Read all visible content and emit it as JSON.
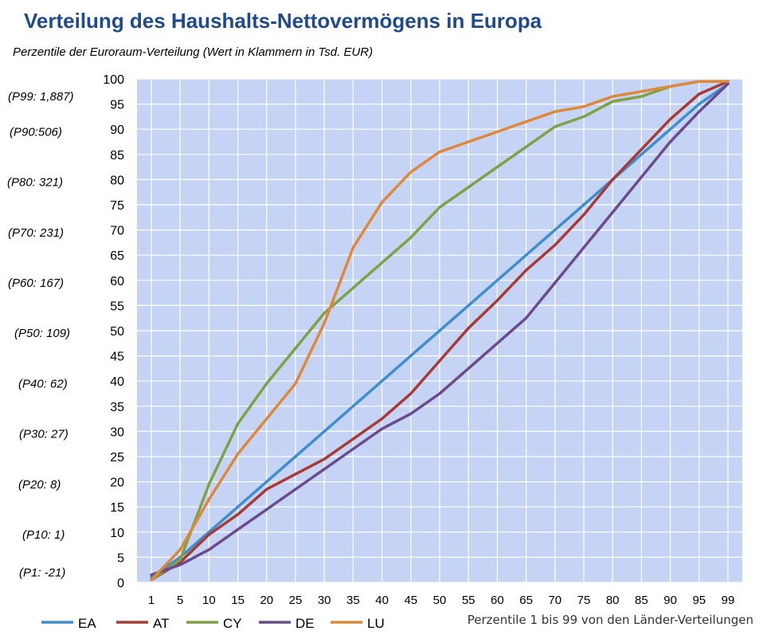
{
  "chart_data": {
    "type": "line",
    "title": "Verteilung des Haushalts-Nettovermögens in Europa",
    "subtitle": "Perzentile der Euroraum-Verteilung (Wert in Klammern in Tsd. EUR)",
    "xlabel": "Perzentile 1 bis 99 von den Länder-Verteilungen",
    "ylabel": "",
    "x": [
      1,
      5,
      10,
      15,
      20,
      25,
      30,
      35,
      40,
      45,
      50,
      55,
      60,
      65,
      70,
      75,
      80,
      85,
      90,
      95,
      99
    ],
    "x_tick_labels": [
      "1",
      "5",
      "10",
      "15",
      "20",
      "25",
      "30",
      "35",
      "40",
      "45",
      "50",
      "55",
      "60",
      "65",
      "70",
      "75",
      "80",
      "85",
      "90",
      "95",
      "99"
    ],
    "ylim": [
      0,
      100
    ],
    "y_ticks": [
      0,
      5,
      10,
      15,
      20,
      25,
      30,
      35,
      40,
      45,
      50,
      55,
      60,
      65,
      70,
      75,
      80,
      85,
      90,
      95,
      100
    ],
    "grid": true,
    "legend_position": "bottom-left",
    "plot_background": "#c5d4f5",
    "percentile_labels": [
      {
        "text": "(P99: 1,887)",
        "y": 96.5
      },
      {
        "text": "(P90:506)",
        "y": 89.5
      },
      {
        "text": "(P80: 321)",
        "y": 79.5
      },
      {
        "text": "(P70: 231)",
        "y": 69.5
      },
      {
        "text": "(P60: 167)",
        "y": 59.5
      },
      {
        "text": "(P50: 109)",
        "y": 49.5
      },
      {
        "text": "(P40: 62)",
        "y": 39.5
      },
      {
        "text": "(P30: 27)",
        "y": 29.5
      },
      {
        "text": "(P20: 8)",
        "y": 19.5
      },
      {
        "text": "(P10: 1)",
        "y": 9.5
      },
      {
        "text": "(P1: -21)",
        "y": 2
      }
    ],
    "series": [
      {
        "name": "EA",
        "color": "#3f8fd0",
        "values": [
          1,
          5,
          10,
          15,
          20,
          25,
          30,
          35,
          40,
          45,
          50,
          55,
          60,
          65,
          70,
          75,
          80,
          85,
          90,
          95,
          99
        ]
      },
      {
        "name": "AT",
        "color": "#a83b36",
        "values": [
          0.5,
          4,
          9.5,
          13.5,
          18.5,
          21.5,
          24.5,
          28.5,
          32.5,
          37.5,
          44,
          50.5,
          56,
          62,
          67,
          73,
          80,
          86,
          92,
          97,
          99.5
        ]
      },
      {
        "name": "CY",
        "color": "#7fa245",
        "values": [
          0.5,
          4.5,
          19.5,
          31.5,
          39.5,
          46.5,
          53.5,
          58.5,
          63.5,
          68.5,
          74.5,
          78.5,
          82.5,
          86.5,
          90.5,
          92.5,
          95.5,
          96.5,
          98.5,
          99.5,
          99.5
        ]
      },
      {
        "name": "DE",
        "color": "#6b4b8e",
        "values": [
          1.5,
          3.5,
          6.5,
          10.5,
          14.5,
          18.5,
          22.5,
          26.5,
          30.5,
          33.5,
          37.5,
          42.5,
          47.5,
          52.5,
          59.5,
          66.5,
          73.5,
          80.5,
          87.5,
          93.5,
          99
        ]
      },
      {
        "name": "LU",
        "color": "#e0883a",
        "values": [
          0.5,
          6.5,
          16.5,
          25.5,
          32.5,
          39.5,
          51.5,
          66.5,
          75.5,
          81.5,
          85.5,
          87.5,
          89.5,
          91.5,
          93.5,
          94.5,
          96.5,
          97.5,
          98.5,
          99.5,
          99.5
        ]
      }
    ]
  }
}
